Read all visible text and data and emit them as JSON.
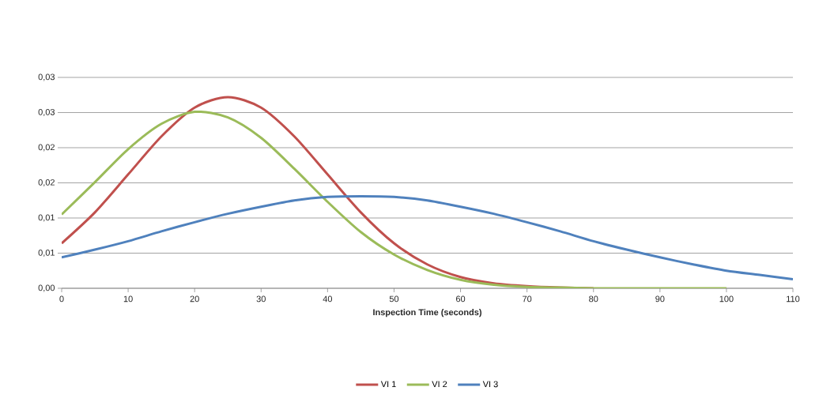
{
  "chart_data": {
    "type": "line",
    "xlabel": "Inspection Time (seconds)",
    "x": [
      0,
      5,
      10,
      15,
      20,
      25,
      30,
      35,
      40,
      45,
      50,
      55,
      60,
      65,
      70,
      75,
      80,
      85,
      90,
      95,
      100,
      105,
      110
    ],
    "series": [
      {
        "name": "VI 1",
        "color": "#c0504d",
        "values": [
          0.0064,
          0.0108,
          0.0162,
          0.0216,
          0.0257,
          0.0272,
          0.0257,
          0.0216,
          0.0162,
          0.0108,
          0.0064,
          0.0034,
          0.0016,
          0.0007,
          0.0003,
          0.0001,
          0,
          null,
          null,
          null,
          null,
          null,
          null
        ]
      },
      {
        "name": "VI 2",
        "color": "#9bbb59",
        "values": [
          0.0105,
          0.0151,
          0.0198,
          0.0234,
          0.0251,
          0.0243,
          0.0214,
          0.017,
          0.0123,
          0.008,
          0.0048,
          0.0026,
          0.0012,
          0.0005,
          0.0002,
          0.0001,
          0,
          0,
          0,
          0,
          0,
          null,
          null
        ]
      },
      {
        "name": "VI 3",
        "color": "#4f81bd",
        "values": [
          0.0044,
          0.0055,
          0.0067,
          0.0081,
          0.0094,
          0.0106,
          0.0116,
          0.0125,
          0.013,
          0.0131,
          0.013,
          0.0125,
          0.0116,
          0.0106,
          0.0094,
          0.0081,
          0.0067,
          0.0055,
          0.0044,
          0.0034,
          0.0025,
          0.0019,
          0.0013
        ]
      }
    ],
    "xlim": [
      0,
      110
    ],
    "xticks": [
      0,
      10,
      20,
      30,
      40,
      50,
      60,
      70,
      80,
      90,
      100,
      110
    ],
    "ylim": [
      0,
      0.03
    ],
    "yticks": [
      {
        "value": 0,
        "label": "0,00"
      },
      {
        "value": 0.005,
        "label": "0,01"
      },
      {
        "value": 0.01,
        "label": "0,01"
      },
      {
        "value": 0.015,
        "label": "0,02"
      },
      {
        "value": 0.02,
        "label": "0,02"
      },
      {
        "value": 0.025,
        "label": "0,03"
      },
      {
        "value": 0.03,
        "label": "0,03"
      }
    ],
    "grid": "y",
    "legend": "bottom",
    "marker": "none",
    "line_style": "solid"
  }
}
